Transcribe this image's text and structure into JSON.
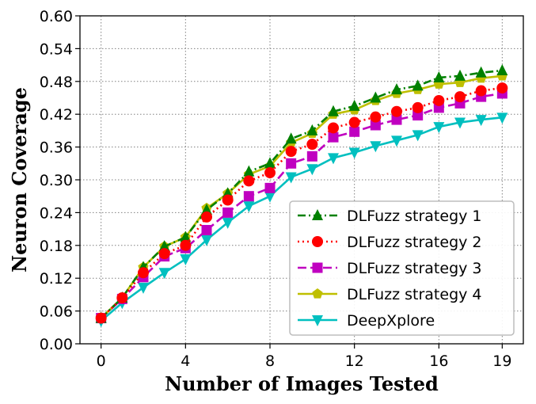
{
  "chart_data": {
    "type": "line",
    "xlabel": "Number of Images Tested",
    "ylabel": "Neuron Coverage",
    "xlim": [
      -1,
      20
    ],
    "ylim": [
      0.0,
      0.6
    ],
    "xticks": [
      0,
      4,
      8,
      12,
      16,
      19
    ],
    "xtick_labels": [
      "0",
      "4",
      "8",
      "12",
      "16",
      "19"
    ],
    "yticks": [
      0.0,
      0.06,
      0.12,
      0.18,
      0.24,
      0.3,
      0.36,
      0.42,
      0.48,
      0.54,
      0.6
    ],
    "ytick_labels": [
      "0.00",
      "0.06",
      "0.12",
      "0.18",
      "0.24",
      "0.30",
      "0.36",
      "0.42",
      "0.48",
      "0.54",
      "0.60"
    ],
    "grid": true,
    "legend_position": "lower-right",
    "x": [
      0,
      1,
      2,
      3,
      4,
      5,
      6,
      7,
      8,
      9,
      10,
      11,
      12,
      13,
      14,
      15,
      16,
      17,
      18,
      19
    ],
    "series": [
      {
        "name": "DLFuzz strategy 1",
        "color": "#008000",
        "marker": "triangle-up",
        "linestyle": "dashdot",
        "values": [
          0.047,
          0.084,
          0.14,
          0.178,
          0.195,
          0.245,
          0.275,
          0.315,
          0.33,
          0.375,
          0.39,
          0.425,
          0.435,
          0.45,
          0.465,
          0.472,
          0.487,
          0.49,
          0.496,
          0.5
        ]
      },
      {
        "name": "DLFuzz strategy 2",
        "color": "#ff0000",
        "marker": "circle",
        "linestyle": "dotted",
        "values": [
          0.047,
          0.084,
          0.13,
          0.165,
          0.18,
          0.232,
          0.263,
          0.298,
          0.313,
          0.352,
          0.365,
          0.395,
          0.405,
          0.415,
          0.425,
          0.432,
          0.445,
          0.452,
          0.463,
          0.468
        ]
      },
      {
        "name": "DLFuzz strategy 3",
        "color": "#c000c0",
        "marker": "square",
        "linestyle": "dashed",
        "values": [
          0.047,
          0.082,
          0.122,
          0.16,
          0.175,
          0.208,
          0.24,
          0.27,
          0.285,
          0.33,
          0.343,
          0.378,
          0.388,
          0.4,
          0.41,
          0.418,
          0.432,
          0.44,
          0.452,
          0.458
        ]
      },
      {
        "name": "DLFuzz strategy 4",
        "color": "#bfbf00",
        "marker": "pentagon",
        "linestyle": "solid",
        "values": [
          0.047,
          0.084,
          0.14,
          0.178,
          0.195,
          0.248,
          0.275,
          0.31,
          0.325,
          0.368,
          0.385,
          0.42,
          0.428,
          0.445,
          0.458,
          0.465,
          0.475,
          0.478,
          0.486,
          0.49
        ]
      },
      {
        "name": "DeepXplore",
        "color": "#00bfbf",
        "marker": "triangle-down",
        "linestyle": "solid",
        "values": [
          0.042,
          0.075,
          0.103,
          0.13,
          0.155,
          0.19,
          0.222,
          0.252,
          0.27,
          0.305,
          0.32,
          0.34,
          0.35,
          0.362,
          0.372,
          0.382,
          0.397,
          0.405,
          0.41,
          0.414
        ]
      }
    ]
  }
}
